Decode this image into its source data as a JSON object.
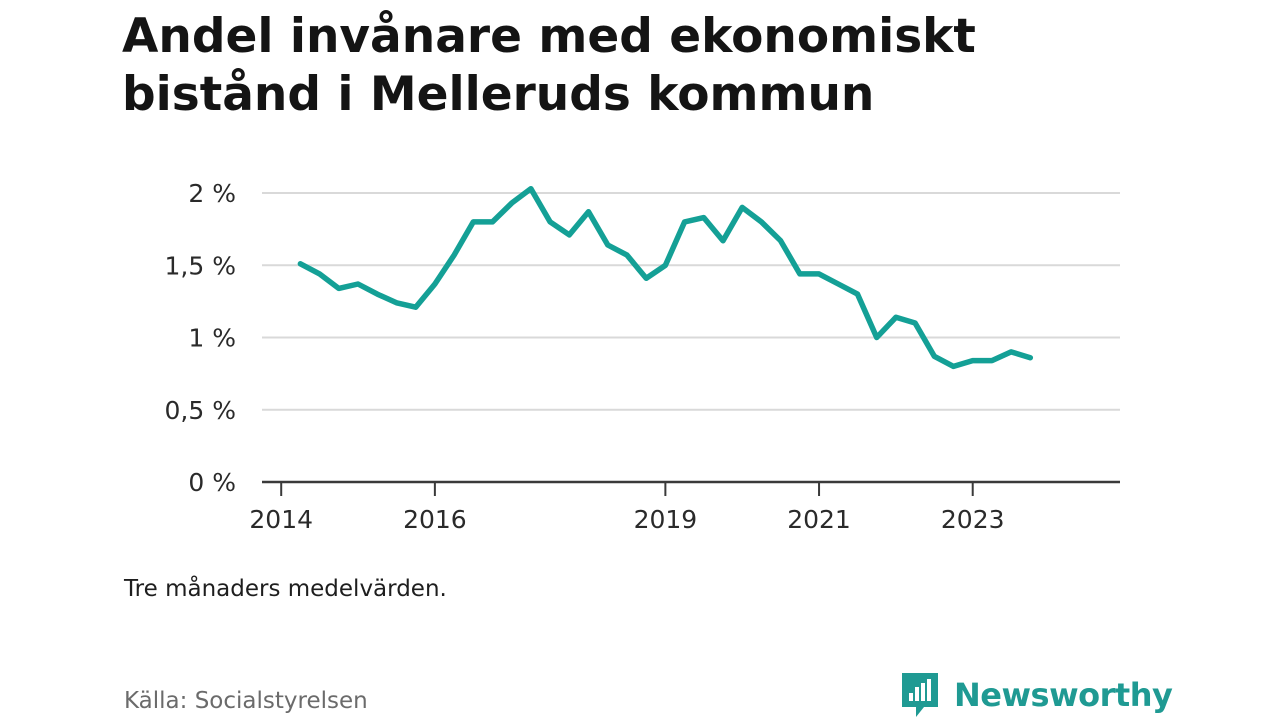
{
  "title": "Andel invånare med ekonomiskt bistånd i Melleruds kommun",
  "note": "Tre månaders medelvärden.",
  "source": "Källa: Socialstyrelsen",
  "brand": {
    "name": "Newsworthy",
    "icon": "newsworthy-logo-icon",
    "color": "#1f9a93"
  },
  "chart_data": {
    "type": "line",
    "title": "Andel invånare med ekonomiskt bistånd i Melleruds kommun",
    "xlabel": "",
    "ylabel": "",
    "xlim": [
      2013.75,
      2024.917
    ],
    "ylim": [
      0,
      2
    ],
    "yticks": [
      {
        "value": 0,
        "label": "0 %"
      },
      {
        "value": 0.5,
        "label": "0,5 %"
      },
      {
        "value": 1,
        "label": "1 %"
      },
      {
        "value": 1.5,
        "label": "1,5 %"
      },
      {
        "value": 2,
        "label": "2 %"
      }
    ],
    "xticks": [
      {
        "value": 2014,
        "label": "2014"
      },
      {
        "value": 2016,
        "label": "2016"
      },
      {
        "value": 2019,
        "label": "2019"
      },
      {
        "value": 2021,
        "label": "2021"
      },
      {
        "value": 2023,
        "label": "2023"
      }
    ],
    "grid": true,
    "series": [
      {
        "color": "#14a096",
        "x": [
          2014.25,
          2014.5,
          2014.75,
          2015.0,
          2015.25,
          2015.5,
          2015.75,
          2016.0,
          2016.25,
          2016.5,
          2016.75,
          2017.0,
          2017.25,
          2017.5,
          2017.75,
          2018.0,
          2018.25,
          2018.5,
          2018.75,
          2019.0,
          2019.25,
          2019.5,
          2019.75,
          2020.0,
          2020.25,
          2020.5,
          2020.75,
          2021.0,
          2021.25,
          2021.5,
          2021.75,
          2022.0,
          2022.25,
          2022.5,
          2022.75,
          2023.0,
          2023.25,
          2023.5,
          2023.75
        ],
        "y": [
          1.51,
          1.44,
          1.34,
          1.37,
          1.3,
          1.24,
          1.21,
          1.37,
          1.57,
          1.8,
          1.8,
          1.93,
          2.03,
          1.8,
          1.71,
          1.87,
          1.64,
          1.57,
          1.41,
          1.5,
          1.8,
          1.83,
          1.67,
          1.9,
          1.8,
          1.67,
          1.44,
          1.44,
          1.37,
          1.3,
          1.0,
          1.14,
          1.1,
          0.87,
          0.8,
          0.84,
          0.84,
          0.9,
          0.86
        ]
      }
    ]
  }
}
